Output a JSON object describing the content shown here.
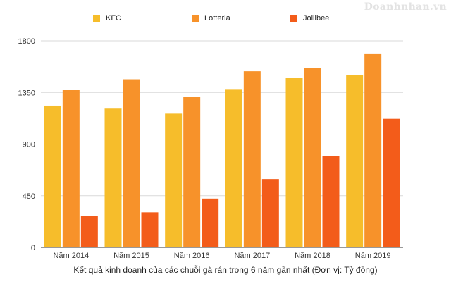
{
  "watermark": "Doanhnhan.vn",
  "caption": "Kết quả kinh doanh của các chuỗi gà rán trong 6 năm gần nhất (Đơn vị: Tỷ đồng)",
  "chart_data": {
    "type": "bar",
    "categories": [
      "Năm 2014",
      "Năm 2015",
      "Năm 2016",
      "Năm 2017",
      "Năm 2018",
      "Năm 2019"
    ],
    "series": [
      {
        "name": "KFC",
        "color": "#F6BD2B",
        "values": [
          1235,
          1215,
          1165,
          1380,
          1480,
          1500
        ]
      },
      {
        "name": "Lotteria",
        "color": "#F7922A",
        "values": [
          1375,
          1465,
          1310,
          1535,
          1565,
          1690
        ]
      },
      {
        "name": "Jollibee",
        "color": "#F35C1A",
        "values": [
          275,
          305,
          425,
          595,
          795,
          1120
        ]
      }
    ],
    "yticks": [
      0,
      450,
      900,
      1350,
      1800
    ],
    "ylim": [
      0,
      1800
    ],
    "grid": true,
    "legend": "top"
  }
}
